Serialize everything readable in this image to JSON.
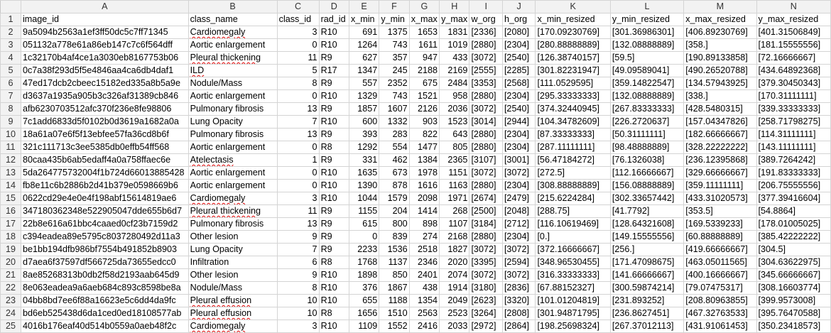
{
  "columns": [
    "A",
    "B",
    "C",
    "D",
    "E",
    "F",
    "G",
    "H",
    "I",
    "J",
    "K",
    "L",
    "M",
    "N"
  ],
  "header": [
    "image_id",
    "class_name",
    "class_id",
    "rad_id",
    "x_min",
    "y_min",
    "x_max",
    "y_max",
    "w_org",
    "h_org",
    "x_min_resized",
    "y_min_resized",
    "x_max_resized",
    "y_max_resized"
  ],
  "rows": [
    [
      "9a5094b2563a1ef3ff50dc5c7ff71345",
      "Cardiomegaly",
      "3",
      "R10",
      "691",
      "1375",
      "1653",
      "1831",
      "[2336]",
      "[2080]",
      "[170.09230769]",
      "[301.36986301]",
      "[406.89230769]",
      "[401.31506849]"
    ],
    [
      "051132a778e61a86eb147c7c6f564dff",
      "Aortic enlargement",
      "0",
      "R10",
      "1264",
      "743",
      "1611",
      "1019",
      "[2880]",
      "[2304]",
      "[280.88888889]",
      "[132.08888889]",
      "[358.]",
      "[181.15555556]"
    ],
    [
      "1c32170b4af4ce1a3030eb8167753b06",
      "Pleural thickening",
      "11",
      "R9",
      "627",
      "357",
      "947",
      "433",
      "[3072]",
      "[2540]",
      "[126.38740157]",
      "[59.5]",
      "[190.89133858]",
      "[72.16666667]"
    ],
    [
      "0c7a38f293d5f5e4846aa4ca6db4daf1",
      "ILD",
      "5",
      "R17",
      "1347",
      "245",
      "2188",
      "2169",
      "[2555]",
      "[2285]",
      "[301.82231947]",
      "[49.09589041]",
      "[490.26520788]",
      "[434.64892368]"
    ],
    [
      "47ed17dcb2cbeec15182ed335a8b5a9e",
      "Nodule/Mass",
      "8",
      "R9",
      "557",
      "2352",
      "675",
      "2484",
      "[3353]",
      "[2568]",
      "[111.0529595]",
      "[359.14822547]",
      "[134.57943925]",
      "[379.30450343]"
    ],
    [
      "d3637a1935a905b3c326af31389cb846",
      "Aortic enlargement",
      "0",
      "R10",
      "1329",
      "743",
      "1521",
      "958",
      "[2880]",
      "[2304]",
      "[295.33333333]",
      "[132.08888889]",
      "[338.]",
      "[170.31111111]"
    ],
    [
      "afb6230703512afc370f236e8fe98806",
      "Pulmonary fibrosis",
      "13",
      "R9",
      "1857",
      "1607",
      "2126",
      "2036",
      "[3072]",
      "[2540]",
      "[374.32440945]",
      "[267.83333333]",
      "[428.5480315]",
      "[339.33333333]"
    ],
    [
      "7c1add6833d5f0102b0d3619a1682a0a",
      "Lung Opacity",
      "7",
      "R10",
      "600",
      "1332",
      "903",
      "1523",
      "[3014]",
      "[2944]",
      "[104.34782609]",
      "[226.2720637]",
      "[157.04347826]",
      "[258.71798275]"
    ],
    [
      "18a61a07e6f5f13ebfee57fa36cd8b6f",
      "Pulmonary fibrosis",
      "13",
      "R9",
      "393",
      "283",
      "822",
      "643",
      "[2880]",
      "[2304]",
      "[87.33333333]",
      "[50.31111111]",
      "[182.66666667]",
      "[114.31111111]"
    ],
    [
      "321c111713c3ee5385db0effb54ff568",
      "Aortic enlargement",
      "0",
      "R8",
      "1292",
      "554",
      "1477",
      "805",
      "[2880]",
      "[2304]",
      "[287.11111111]",
      "[98.48888889]",
      "[328.22222222]",
      "[143.11111111]"
    ],
    [
      "80caa435b6ab5edaff4a0a758ffaec6e",
      "Atelectasis",
      "1",
      "R9",
      "331",
      "462",
      "1384",
      "2365",
      "[3107]",
      "[3001]",
      "[56.47184272]",
      "[76.1326038]",
      "[236.12395868]",
      "[389.7264242]"
    ],
    [
      "5da264775732004f1b724d66013885428",
      "Aortic enlargement",
      "0",
      "R10",
      "1635",
      "673",
      "1978",
      "1151",
      "[3072]",
      "[3072]",
      "[272.5]",
      "[112.16666667]",
      "[329.66666667]",
      "[191.83333333]"
    ],
    [
      "fb8e11c6b2886b2d41b379e0598669b6",
      "Aortic enlargement",
      "0",
      "R10",
      "1390",
      "878",
      "1616",
      "1163",
      "[2880]",
      "[2304]",
      "[308.88888889]",
      "[156.08888889]",
      "[359.11111111]",
      "[206.75555556]"
    ],
    [
      "0622cd29e4e0e4f198abf15614819ae6",
      "Cardiomegaly",
      "3",
      "R10",
      "1044",
      "1579",
      "2098",
      "1971",
      "[2674]",
      "[2479]",
      "[215.6224284]",
      "[302.33657442]",
      "[433.31020573]",
      "[377.39416604]"
    ],
    [
      "347180362348e522905047dde655b6d7",
      "Pleural thickening",
      "11",
      "R9",
      "1155",
      "204",
      "1414",
      "268",
      "[2500]",
      "[2048]",
      "[288.75]",
      "[41.7792]",
      "[353.5]",
      "[54.8864]"
    ],
    [
      "22b8e616a61bbc4caaed0cf23b7159d2",
      "Pulmonary fibrosis",
      "13",
      "R9",
      "615",
      "800",
      "898",
      "1107",
      "[3184]",
      "[2712]",
      "[116.10619469]",
      "[128.64321608]",
      "[169.5339233]",
      "[178.01005025]"
    ],
    [
      "c394eadea89e5795c8037280492d11a3",
      "Other lesion",
      "9",
      "R9",
      "0",
      "839",
      "274",
      "2168",
      "[2880]",
      "[2304]",
      "[0.]",
      "[149.15555556]",
      "[60.88888889]",
      "[385.42222222]"
    ],
    [
      "be1bb194dfb986bf7554b491852b8903",
      "Lung Opacity",
      "7",
      "R9",
      "2233",
      "1536",
      "2518",
      "1827",
      "[3072]",
      "[3072]",
      "[372.16666667]",
      "[256.]",
      "[419.66666667]",
      "[304.5]"
    ],
    [
      "d7aea6f37597df566725da73655edcc0",
      "Infiltration",
      "6",
      "R8",
      "1768",
      "1137",
      "2346",
      "2020",
      "[3395]",
      "[2594]",
      "[348.96530455]",
      "[171.47098675]",
      "[463.05011565]",
      "[304.63622975]"
    ],
    [
      "8ae85268313b0db2f58d2193aab645d9",
      "Other lesion",
      "9",
      "R10",
      "1898",
      "850",
      "2401",
      "2074",
      "[3072]",
      "[3072]",
      "[316.33333333]",
      "[141.66666667]",
      "[400.16666667]",
      "[345.66666667]"
    ],
    [
      "8e063eadea9a6aeb684c893c8598be8a",
      "Nodule/Mass",
      "8",
      "R10",
      "376",
      "1867",
      "438",
      "1914",
      "[3180]",
      "[2836]",
      "[67.88152327]",
      "[300.59874214]",
      "[79.07475317]",
      "[308.16603774]"
    ],
    [
      "04bb8bd7ee6f88a16623e5c6dd4da9fc",
      "Pleural effusion",
      "10",
      "R10",
      "655",
      "1188",
      "1354",
      "2049",
      "[2623]",
      "[3320]",
      "[101.01204819]",
      "[231.893252]",
      "[208.80963855]",
      "[399.9573008]"
    ],
    [
      "bd6eb525438d6da1ced0ed18108577ab",
      "Pleural effusion",
      "10",
      "R8",
      "1656",
      "1510",
      "2563",
      "2523",
      "[3264]",
      "[2808]",
      "[301.94871795]",
      "[236.8627451]",
      "[467.32763533]",
      "[395.76470588]"
    ],
    [
      "4016b176eaf40d514b0559a0aeb48f2c",
      "Cardiomegaly",
      "3",
      "R10",
      "1109",
      "1552",
      "2416",
      "2033",
      "[2972]",
      "[2864]",
      "[198.25698324]",
      "[267.37012113]",
      "[431.91061453]",
      "[350.23418573]"
    ]
  ]
}
